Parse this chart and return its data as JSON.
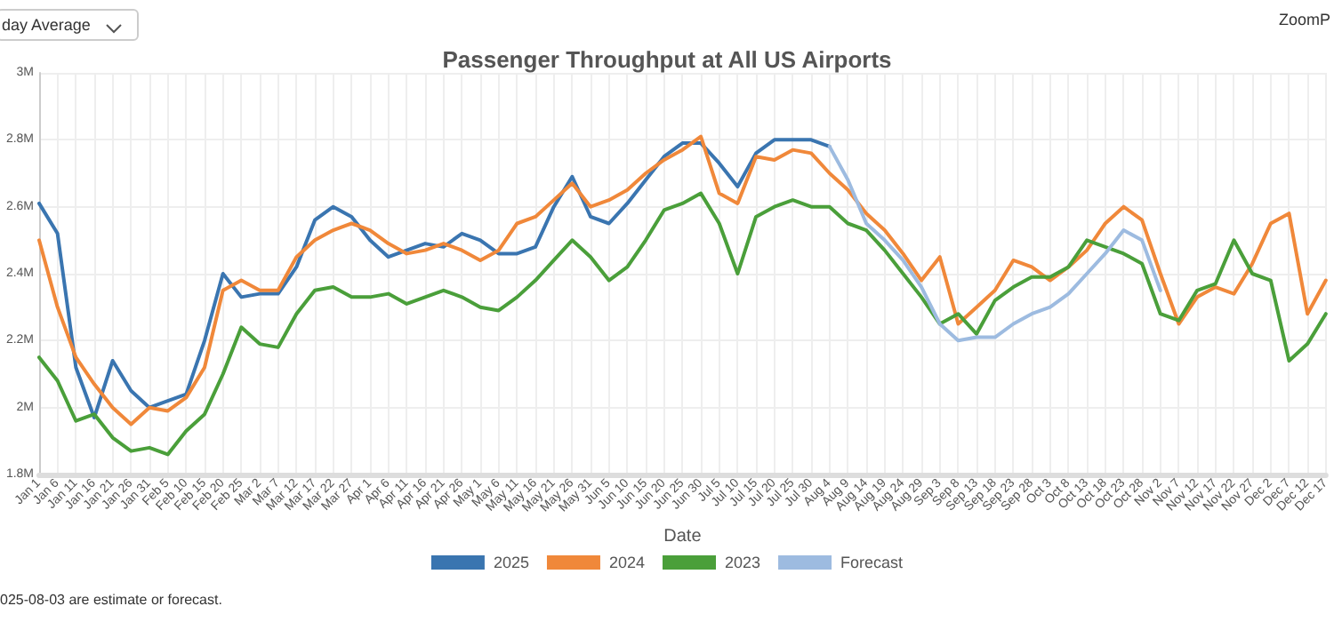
{
  "chart_data": {
    "type": "line",
    "title": "Passenger Throughput at All US Airports",
    "xlabel": "Date",
    "annotations": [
      "day Average",
      "ZoomP",
      "025-08-03 are estimate or forecast."
    ],
    "categories": [
      "Jan 1",
      "Jan 6",
      "Jan 11",
      "Jan 16",
      "Jan 21",
      "Jan 26",
      "Jan 31",
      "Feb 5",
      "Feb 10",
      "Feb 15",
      "Feb 20",
      "Feb 25",
      "Mar 2",
      "Mar 7",
      "Mar 12",
      "Mar 17",
      "Mar 22",
      "Mar 27",
      "Apr 1",
      "Apr 6",
      "Apr 11",
      "Apr 16",
      "Apr 21",
      "Apr 26",
      "May 1",
      "May 6",
      "May 11",
      "May 16",
      "May 21",
      "May 26",
      "May 31",
      "Jun 5",
      "Jun 10",
      "Jun 15",
      "Jun 20",
      "Jun 25",
      "Jun 30",
      "Jul 5",
      "Jul 10",
      "Jul 15",
      "Jul 20",
      "Jul 25",
      "Jul 30",
      "Aug 4",
      "Aug 9",
      "Aug 14",
      "Aug 19",
      "Aug 24",
      "Aug 29",
      "Sep 3",
      "Sep 8",
      "Sep 13",
      "Sep 18",
      "Sep 23",
      "Sep 28",
      "Oct 3",
      "Oct 8",
      "Oct 13",
      "Oct 18",
      "Oct 23",
      "Oct 28",
      "Nov 2",
      "Nov 7",
      "Nov 12",
      "Nov 17",
      "Nov 22",
      "Nov 27",
      "Dec 2",
      "Dec 7",
      "Dec 12",
      "Dec 17"
    ],
    "series": [
      {
        "name": "2025",
        "color": "#3a75b0",
        "values": [
          2.61,
          2.52,
          2.12,
          1.97,
          2.14,
          2.05,
          2.0,
          2.02,
          2.04,
          2.2,
          2.4,
          2.33,
          2.34,
          2.34,
          2.42,
          2.56,
          2.6,
          2.57,
          2.5,
          2.45,
          2.47,
          2.49,
          2.48,
          2.52,
          2.5,
          2.46,
          2.46,
          2.48,
          2.6,
          2.69,
          2.57,
          2.55,
          2.61,
          2.68,
          2.75,
          2.79,
          2.79,
          2.73,
          2.66,
          2.76,
          2.8,
          2.8,
          2.8,
          2.78,
          null,
          null,
          null,
          null,
          null,
          null,
          null,
          null,
          null,
          null,
          null,
          null,
          null,
          null,
          null,
          null,
          null,
          null,
          null,
          null,
          null,
          null,
          null,
          null,
          null,
          null,
          null
        ]
      },
      {
        "name": "2024",
        "color": "#f0883a",
        "values": [
          2.5,
          2.3,
          2.15,
          2.07,
          2.0,
          1.95,
          2.0,
          1.99,
          2.03,
          2.12,
          2.35,
          2.38,
          2.35,
          2.35,
          2.45,
          2.5,
          2.53,
          2.55,
          2.53,
          2.49,
          2.46,
          2.47,
          2.49,
          2.47,
          2.44,
          2.47,
          2.55,
          2.57,
          2.62,
          2.67,
          2.6,
          2.62,
          2.65,
          2.7,
          2.74,
          2.77,
          2.81,
          2.64,
          2.61,
          2.75,
          2.74,
          2.77,
          2.76,
          2.7,
          2.65,
          2.58,
          2.53,
          2.46,
          2.38,
          2.45,
          2.25,
          2.3,
          2.35,
          2.44,
          2.42,
          2.38,
          2.42,
          2.47,
          2.55,
          2.6,
          2.56,
          2.4,
          2.25,
          2.33,
          2.36,
          2.34,
          2.43,
          2.55,
          2.58,
          2.28,
          2.38
        ]
      },
      {
        "name": "2023",
        "color": "#4a9f3a",
        "values": [
          2.15,
          2.08,
          1.96,
          1.98,
          1.91,
          1.87,
          1.88,
          1.86,
          1.93,
          1.98,
          2.1,
          2.24,
          2.19,
          2.18,
          2.28,
          2.35,
          2.36,
          2.33,
          2.33,
          2.34,
          2.31,
          2.33,
          2.35,
          2.33,
          2.3,
          2.29,
          2.33,
          2.38,
          2.44,
          2.5,
          2.45,
          2.38,
          2.42,
          2.5,
          2.59,
          2.61,
          2.64,
          2.55,
          2.4,
          2.57,
          2.6,
          2.62,
          2.6,
          2.6,
          2.55,
          2.53,
          2.47,
          2.4,
          2.33,
          2.25,
          2.28,
          2.22,
          2.32,
          2.36,
          2.39,
          2.39,
          2.42,
          2.5,
          2.48,
          2.46,
          2.43,
          2.28,
          2.26,
          2.35,
          2.37,
          2.5,
          2.4,
          2.38,
          2.14,
          2.19,
          2.28
        ]
      },
      {
        "name": "Forecast",
        "color": "#9dbbe0",
        "values": [
          null,
          null,
          null,
          null,
          null,
          null,
          null,
          null,
          null,
          null,
          null,
          null,
          null,
          null,
          null,
          null,
          null,
          null,
          null,
          null,
          null,
          null,
          null,
          null,
          null,
          null,
          null,
          null,
          null,
          null,
          null,
          null,
          null,
          null,
          null,
          null,
          null,
          null,
          null,
          null,
          null,
          null,
          null,
          2.78,
          2.68,
          2.55,
          2.5,
          2.44,
          2.36,
          2.25,
          2.2,
          2.21,
          2.21,
          2.25,
          2.28,
          2.3,
          2.34,
          2.4,
          2.46,
          2.53,
          2.5,
          2.35,
          null,
          null,
          null,
          null,
          null,
          null,
          null,
          null,
          null
        ]
      }
    ],
    "ylim": [
      1.8,
      3
    ],
    "yticks": [
      {
        "value": 1.8,
        "label": "1.8M"
      },
      {
        "value": 2,
        "label": "2M"
      },
      {
        "value": 2.2,
        "label": "2.2M"
      },
      {
        "value": 2.4,
        "label": "2.4M"
      },
      {
        "value": 2.6,
        "label": "2.6M"
      },
      {
        "value": 2.8,
        "label": "2.8M"
      },
      {
        "value": 3,
        "label": "3M"
      }
    ],
    "grid": true,
    "legend": "bottom",
    "marker": "none",
    "line_style": "solid"
  }
}
